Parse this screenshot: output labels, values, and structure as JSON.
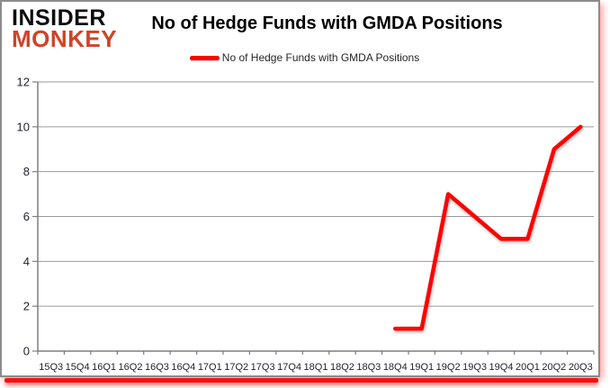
{
  "logo": {
    "line1": "INSIDER",
    "line2": "MONKEY"
  },
  "header": {
    "title": "No of Hedge Funds with GMDA Positions"
  },
  "legend": {
    "label": "No of Hedge Funds with GMDA Positions",
    "swatch_color": "#ff0000"
  },
  "colors": {
    "series_red": "#ff0000",
    "logo_red": "#d04327",
    "gridline": "#9a9a9a",
    "axis": "#7f7f7f",
    "tick_label": "#1f1f2e",
    "frame_border": "#8c8c8c",
    "bottom_bar": "#ff0f0f"
  },
  "chart_data": {
    "type": "line",
    "title": "No of Hedge Funds with GMDA Positions",
    "categories": [
      "15Q3",
      "15Q4",
      "16Q1",
      "16Q2",
      "16Q3",
      "16Q4",
      "17Q1",
      "17Q2",
      "17Q3",
      "17Q4",
      "18Q1",
      "18Q2",
      "18Q3",
      "18Q4",
      "19Q1",
      "19Q2",
      "19Q3",
      "19Q4",
      "20Q1",
      "20Q2",
      "20Q3"
    ],
    "series": [
      {
        "name": "No of Hedge Funds with GMDA Positions",
        "color": "#ff0000",
        "values": [
          null,
          null,
          null,
          null,
          null,
          null,
          null,
          null,
          null,
          null,
          null,
          null,
          null,
          1,
          1,
          7,
          6,
          5,
          5,
          9,
          10
        ]
      }
    ],
    "xlabel": "",
    "ylabel": "",
    "ylim": [
      0,
      12
    ],
    "yticks": [
      0,
      2,
      4,
      6,
      8,
      10,
      12
    ],
    "grid": "horizontal",
    "legend_position": "top-center"
  }
}
